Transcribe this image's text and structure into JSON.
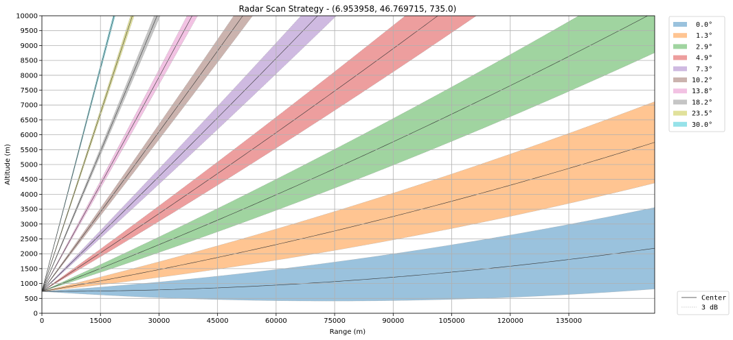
{
  "chart_data": {
    "type": "area",
    "title": "Radar Scan Strategy - (6.953958, 46.769715, 735.0)",
    "xlabel": "Range (m)",
    "ylabel": "Altitude (m)",
    "xlim": [
      0,
      157000
    ],
    "ylim": [
      0,
      10000
    ],
    "grid": true,
    "legend_position": "top-right",
    "radar_altitude": 735.0,
    "beamwidth_deg": 1.0,
    "x_ticks": [
      0,
      15000,
      30000,
      45000,
      60000,
      75000,
      90000,
      105000,
      120000,
      135000
    ],
    "x_tick_labels": [
      "0",
      "15000",
      "30000",
      "45000",
      "60000",
      "75000",
      "90000",
      "105000",
      "120000",
      "135000"
    ],
    "y_ticks": [
      0,
      500,
      1000,
      1500,
      2000,
      2500,
      3000,
      3500,
      4000,
      4500,
      5000,
      5500,
      6000,
      6500,
      7000,
      7500,
      8000,
      8500,
      9000,
      9500,
      10000
    ],
    "y_tick_labels": [
      "0",
      "500",
      "1000",
      "1500",
      "2000",
      "2500",
      "3000",
      "3500",
      "4000",
      "4500",
      "5000",
      "5500",
      "6000",
      "6500",
      "7000",
      "7500",
      "8000",
      "8500",
      "9000",
      "9500",
      "10000"
    ],
    "series": [
      {
        "name": " 0.0°",
        "elevation": 0.0,
        "color": "#1f77b4"
      },
      {
        "name": " 1.3°",
        "elevation": 1.3,
        "color": "#ff7f0e"
      },
      {
        "name": " 2.9°",
        "elevation": 2.9,
        "color": "#2ca02c"
      },
      {
        "name": " 4.9°",
        "elevation": 4.9,
        "color": "#d62728"
      },
      {
        "name": " 7.3°",
        "elevation": 7.3,
        "color": "#9467bd"
      },
      {
        "name": "10.2°",
        "elevation": 10.2,
        "color": "#8c564b"
      },
      {
        "name": "13.8°",
        "elevation": 13.8,
        "color": "#e377c2"
      },
      {
        "name": "18.2°",
        "elevation": 18.2,
        "color": "#7f7f7f"
      },
      {
        "name": "23.5°",
        "elevation": 23.5,
        "color": "#bcbd22"
      },
      {
        "name": "30.0°",
        "elevation": 30.0,
        "color": "#17becf"
      }
    ],
    "line_legend": [
      {
        "name": "Center",
        "style": "solid"
      },
      {
        "name": "3 dB",
        "style": "dotted"
      }
    ]
  }
}
